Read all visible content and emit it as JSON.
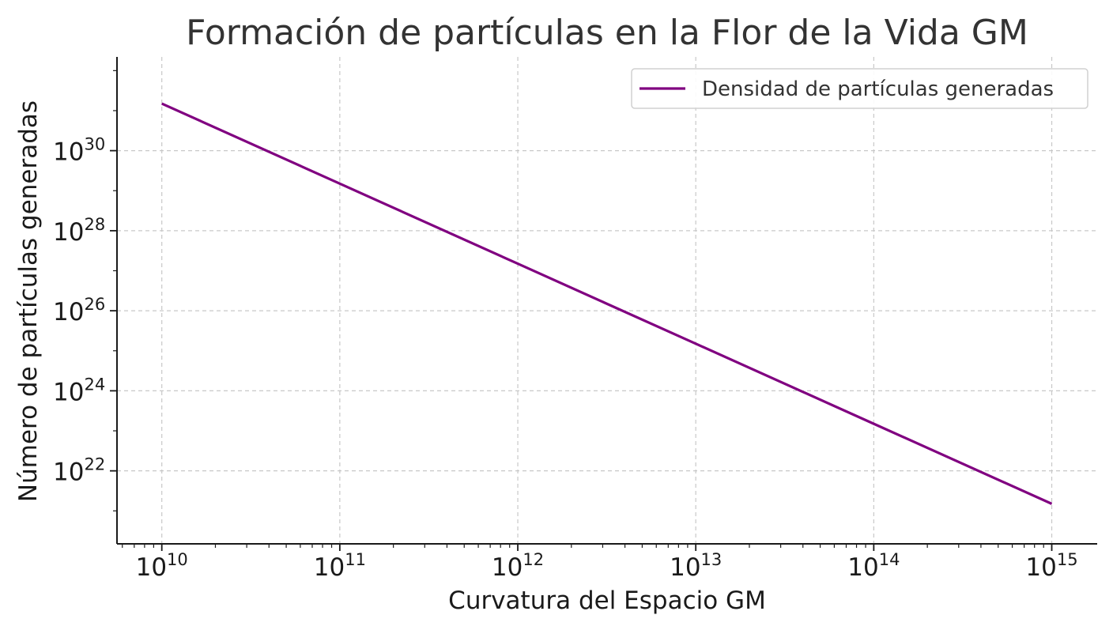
{
  "chart_data": {
    "type": "line",
    "title": "Formación de partículas en la Flor de la Vida GM",
    "xlabel": "Curvatura del Espacio GM",
    "ylabel": "Número de partículas generadas",
    "x_scale": "log",
    "y_scale": "log",
    "xlim": [
      5600000000.0,
      1800000000000000.0
    ],
    "ylim": [
      1.5e+20,
      2.2e+32
    ],
    "x_ticks": [
      {
        "base": "10",
        "exp": "10",
        "value": 10000000000.0
      },
      {
        "base": "10",
        "exp": "11",
        "value": 100000000000.0
      },
      {
        "base": "10",
        "exp": "12",
        "value": 1000000000000.0
      },
      {
        "base": "10",
        "exp": "13",
        "value": 10000000000000.0
      },
      {
        "base": "10",
        "exp": "14",
        "value": 100000000000000.0
      },
      {
        "base": "10",
        "exp": "15",
        "value": 1000000000000000.0
      }
    ],
    "y_ticks": [
      {
        "base": "10",
        "exp": "22",
        "value": 1e+22
      },
      {
        "base": "10",
        "exp": "24",
        "value": 1e+24
      },
      {
        "base": "10",
        "exp": "26",
        "value": 1e+26
      },
      {
        "base": "10",
        "exp": "28",
        "value": 1e+28
      },
      {
        "base": "10",
        "exp": "30",
        "value": 1e+30
      }
    ],
    "grid": true,
    "legend_position": "top-right",
    "series": [
      {
        "name": "Densidad de partículas generadas",
        "color": "#800080",
        "x": [
          10000000000.0,
          100000000000.0,
          1000000000000.0,
          10000000000000.0,
          100000000000000.0,
          1000000000000000.0
        ],
        "y": [
          1.5e+31,
          1.5e+29,
          1.5e+27,
          1.5e+25,
          1.5e+23,
          1.5e+21
        ]
      }
    ]
  }
}
